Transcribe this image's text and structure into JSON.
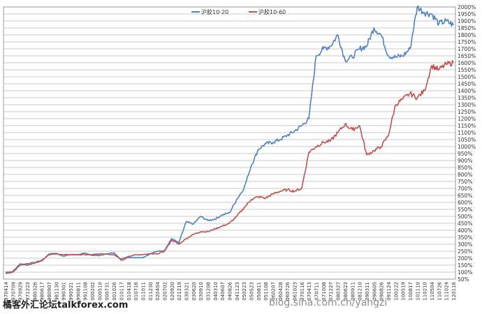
{
  "chart_data": {
    "type": "line",
    "title": "",
    "xlabel": "",
    "ylabel": "",
    "ylim": [
      50,
      2000
    ],
    "y_tick_labels": [
      "50%",
      "100%",
      "150%",
      "200%",
      "250%",
      "300%",
      "350%",
      "400%",
      "450%",
      "500%",
      "550%",
      "600%",
      "650%",
      "700%",
      "750%",
      "800%",
      "850%",
      "900%",
      "950%",
      "1000%",
      "1050%",
      "1100%",
      "1150%",
      "1200%",
      "1250%",
      "1300%",
      "1350%",
      "1400%",
      "1450%",
      "1500%",
      "1550%",
      "1600%",
      "1650%",
      "1700%",
      "1750%",
      "1800%",
      "1850%",
      "1900%",
      "1950%",
      "2000%"
    ],
    "x_tick_labels": [
      "970414",
      "970709",
      "970929",
      "971223",
      "980326",
      "980617",
      "980907",
      "981130",
      "990301",
      "990521",
      "990811",
      "991108",
      "000202",
      "000510",
      "000731",
      "001026",
      "010117",
      "010418",
      "010716",
      "011011",
      "011230",
      "020404",
      "020702",
      "020920",
      "021219",
      "030321",
      "030620",
      "030910",
      "031208",
      "040310",
      "040607",
      "040826",
      "041123",
      "050223",
      "050523",
      "050811",
      "051108",
      "060207",
      "060428",
      "060726",
      "061023",
      "070116",
      "070413",
      "070711",
      "071008",
      "071227",
      "080327",
      "080623",
      "080911",
      "081210",
      "090311",
      "090605",
      "090826",
      "091124",
      "100222",
      "100519",
      "100817",
      "101110",
      "110210",
      "110504",
      "110726",
      "111024",
      "120116"
    ],
    "legend": [
      "沪胶10-20",
      "沪胶10-60"
    ],
    "series": [
      {
        "name": "沪胶10-20",
        "color": "#4f81bd",
        "values": [
          100,
          104,
          160,
          150,
          165,
          180,
          230,
          235,
          215,
          225,
          225,
          235,
          220,
          220,
          230,
          240,
          185,
          205,
          205,
          205,
          230,
          250,
          255,
          340,
          310,
          460,
          445,
          500,
          470,
          480,
          510,
          525,
          620,
          700,
          860,
          980,
          1020,
          1030,
          1050,
          1080,
          1110,
          1150,
          1200,
          1650,
          1700,
          1720,
          1800,
          1620,
          1640,
          1700,
          1720,
          1850,
          1800,
          1650,
          1640,
          1650,
          1700,
          2000,
          1960,
          1950,
          1880,
          1900,
          1870
        ]
      },
      {
        "name": "沪胶10-60",
        "color": "#c0504d",
        "values": [
          90,
          100,
          150,
          160,
          170,
          185,
          225,
          230,
          225,
          225,
          225,
          225,
          225,
          230,
          230,
          225,
          195,
          210,
          225,
          225,
          230,
          230,
          250,
          330,
          300,
          340,
          370,
          390,
          390,
          410,
          430,
          450,
          500,
          560,
          620,
          640,
          630,
          660,
          680,
          690,
          680,
          700,
          960,
          1000,
          1030,
          1040,
          1100,
          1160,
          1120,
          1150,
          940,
          970,
          1000,
          1080,
          1300,
          1340,
          1380,
          1350,
          1400,
          1580,
          1550,
          1590,
          1600
        ]
      }
    ],
    "grid": true,
    "legend_position": "top-center"
  },
  "watermark_left": "橘客外汇论坛talkforex.com",
  "watermark_right": "blog.sina.com.cn/yangzi"
}
